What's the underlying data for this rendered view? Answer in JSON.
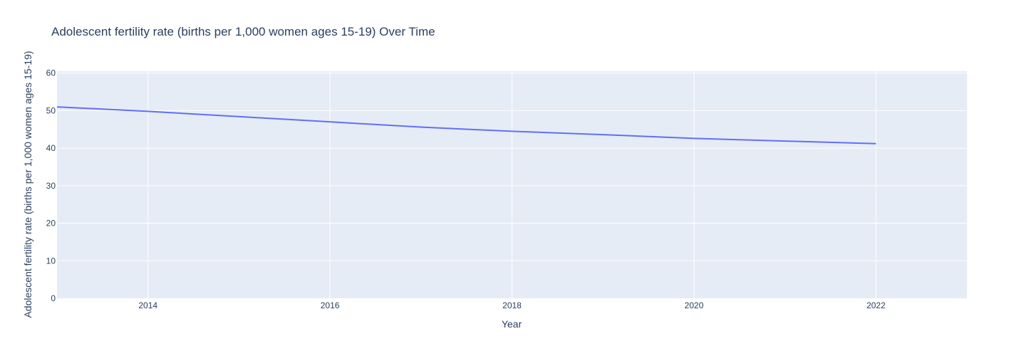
{
  "chart_data": {
    "type": "line",
    "title": "Adolescent fertility rate (births per 1,000 women ages 15-19) Over Time",
    "xlabel": "Year",
    "ylabel": "Adolescent fertility rate (births per 1,000 women ages 15-19)",
    "xlim": [
      2013,
      2023
    ],
    "ylim": [
      0,
      60.5
    ],
    "xticks": [
      2014,
      2016,
      2018,
      2020,
      2022
    ],
    "yticks": [
      0,
      10,
      20,
      30,
      40,
      50,
      60
    ],
    "grid": true,
    "legend": "none",
    "series": [
      {
        "x": [
          2013,
          2014,
          2015,
          2016,
          2017,
          2018,
          2019,
          2020,
          2021,
          2022
        ],
        "y": [
          51.0,
          49.8,
          48.4,
          47.0,
          45.6,
          44.5,
          43.6,
          42.6,
          41.9,
          41.2
        ]
      }
    ],
    "colors": {
      "line": "#636efa",
      "plot_bg": "#e5ecf6",
      "grid": "#ffffff",
      "text": "#2a3f5f"
    }
  }
}
